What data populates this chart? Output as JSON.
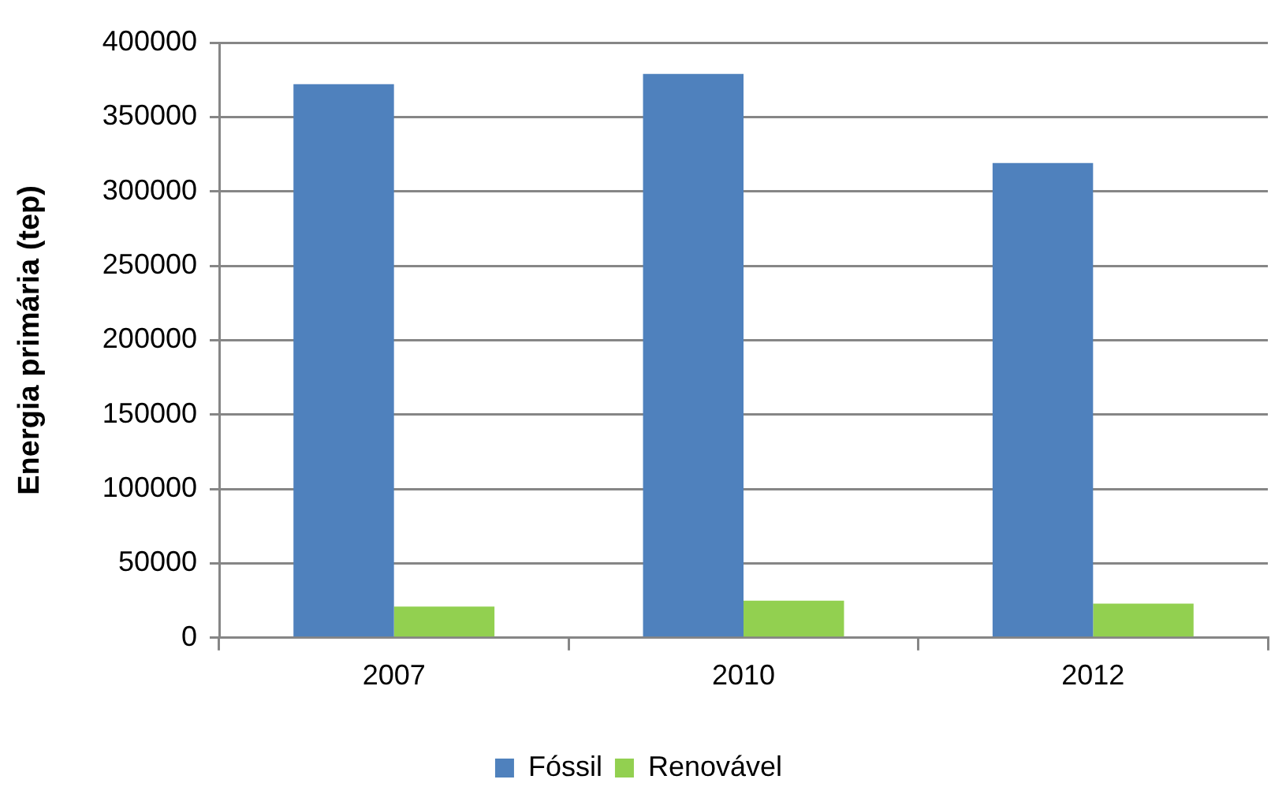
{
  "chart_data": {
    "type": "bar",
    "ylabel": "Energia primária (tep)",
    "categories": [
      "2007",
      "2010",
      "2012"
    ],
    "series": [
      {
        "name": "Fóssil",
        "color": "#4f81bd",
        "values": [
          372000,
          379000,
          319000
        ]
      },
      {
        "name": "Renovável",
        "color": "#92d050",
        "values": [
          21000,
          25000,
          23000
        ]
      }
    ],
    "ylim": [
      0,
      400000
    ],
    "yticks": [
      0,
      50000,
      100000,
      150000,
      200000,
      250000,
      300000,
      350000,
      400000
    ],
    "grid": "y",
    "legend": "bottom"
  }
}
